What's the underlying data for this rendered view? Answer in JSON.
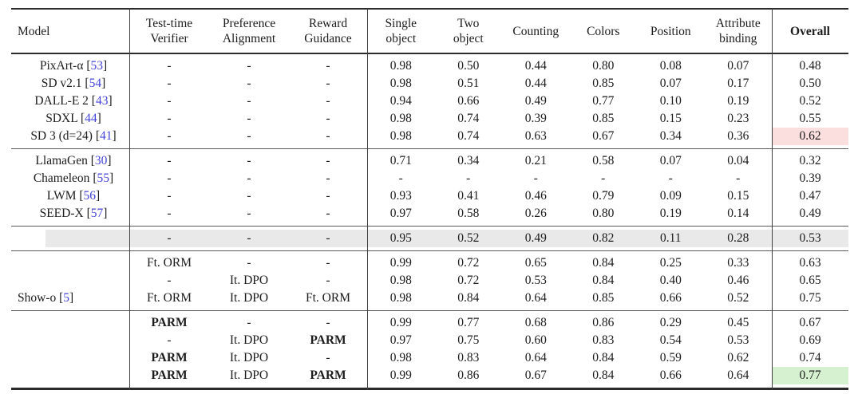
{
  "table": {
    "header": {
      "model": "Model",
      "verifier": "Test-time\nVerifier",
      "preference": "Preference\nAlignment",
      "reward": "Reward\nGuidance",
      "single_object": "Single\nobject",
      "two_object": "Two\nobject",
      "counting": "Counting",
      "colors": "Colors",
      "position": "Position",
      "attribute_binding": "Attribute\nbinding",
      "overall": "Overall"
    },
    "row_group_label": {
      "name": "Show-o",
      "cite": "[5]"
    },
    "groups": [
      {
        "rows": [
          {
            "model": "PixArt-α",
            "cite": "[53]",
            "methods": [
              "-",
              "-",
              "-"
            ],
            "scores": [
              "0.98",
              "0.50",
              "0.44",
              "0.80",
              "0.08",
              "0.07"
            ],
            "overall": "0.48"
          },
          {
            "model": "SD v2.1",
            "cite": "[54]",
            "methods": [
              "-",
              "-",
              "-"
            ],
            "scores": [
              "0.98",
              "0.51",
              "0.44",
              "0.85",
              "0.07",
              "0.17"
            ],
            "overall": "0.50"
          },
          {
            "model": "DALL-E 2",
            "cite": "[43]",
            "methods": [
              "-",
              "-",
              "-"
            ],
            "scores": [
              "0.94",
              "0.66",
              "0.49",
              "0.77",
              "0.10",
              "0.19"
            ],
            "overall": "0.52"
          },
          {
            "model": "SDXL",
            "cite": "[44]",
            "methods": [
              "-",
              "-",
              "-"
            ],
            "scores": [
              "0.98",
              "0.74",
              "0.39",
              "0.85",
              "0.15",
              "0.23"
            ],
            "overall": "0.55"
          },
          {
            "model": "SD 3 (d=24)",
            "cite": "[41]",
            "methods": [
              "-",
              "-",
              "-"
            ],
            "scores": [
              "0.98",
              "0.74",
              "0.63",
              "0.67",
              "0.34",
              "0.36"
            ],
            "overall": "0.62",
            "overall_highlight": "red"
          }
        ]
      },
      {
        "rows": [
          {
            "model": "LlamaGen",
            "cite": "[30]",
            "methods": [
              "-",
              "-",
              "-"
            ],
            "scores": [
              "0.71",
              "0.34",
              "0.21",
              "0.58",
              "0.07",
              "0.04"
            ],
            "overall": "0.32"
          },
          {
            "model": "Chameleon",
            "cite": "[55]",
            "methods": [
              "-",
              "-",
              "-"
            ],
            "scores": [
              "-",
              "-",
              "-",
              "-",
              "-",
              "-"
            ],
            "overall": "0.39"
          },
          {
            "model": "LWM",
            "cite": "[56]",
            "methods": [
              "-",
              "-",
              "-"
            ],
            "scores": [
              "0.93",
              "0.41",
              "0.46",
              "0.79",
              "0.09",
              "0.15"
            ],
            "overall": "0.47"
          },
          {
            "model": "SEED-X",
            "cite": "[57]",
            "methods": [
              "-",
              "-",
              "-"
            ],
            "scores": [
              "0.97",
              "0.58",
              "0.26",
              "0.80",
              "0.19",
              "0.14"
            ],
            "overall": "0.49"
          }
        ]
      },
      {
        "rows": [
          {
            "model": "",
            "cite": "",
            "methods": [
              "-",
              "-",
              "-"
            ],
            "scores": [
              "0.95",
              "0.52",
              "0.49",
              "0.82",
              "0.11",
              "0.28"
            ],
            "overall": "0.53",
            "row_highlight": "gray"
          }
        ]
      },
      {
        "rows": [
          {
            "model": "",
            "cite": "",
            "methods": [
              "Ft. ORM",
              "-",
              "-"
            ],
            "scores": [
              "0.99",
              "0.72",
              "0.65",
              "0.84",
              "0.25",
              "0.33"
            ],
            "overall": "0.63"
          },
          {
            "model": "",
            "cite": "",
            "methods": [
              "-",
              "It. DPO",
              "-"
            ],
            "scores": [
              "0.98",
              "0.72",
              "0.53",
              "0.84",
              "0.40",
              "0.46"
            ],
            "overall": "0.65"
          },
          {
            "model": "",
            "cite": "",
            "methods": [
              "Ft. ORM",
              "It. DPO",
              "Ft. ORM"
            ],
            "scores": [
              "0.98",
              "0.84",
              "0.64",
              "0.85",
              "0.66",
              "0.52"
            ],
            "overall": "0.75"
          }
        ]
      },
      {
        "rows": [
          {
            "model": "",
            "cite": "",
            "methods": [
              "PARM",
              "-",
              "-"
            ],
            "scores": [
              "0.99",
              "0.77",
              "0.68",
              "0.86",
              "0.29",
              "0.45"
            ],
            "overall": "0.67"
          },
          {
            "model": "",
            "cite": "",
            "methods": [
              "-",
              "It. DPO",
              "PARM"
            ],
            "scores": [
              "0.97",
              "0.75",
              "0.60",
              "0.83",
              "0.54",
              "0.53"
            ],
            "overall": "0.69"
          },
          {
            "model": "",
            "cite": "",
            "methods": [
              "PARM",
              "It. DPO",
              "-"
            ],
            "scores": [
              "0.98",
              "0.83",
              "0.64",
              "0.84",
              "0.59",
              "0.62"
            ],
            "overall": "0.74"
          },
          {
            "model": "",
            "cite": "",
            "methods": [
              "PARM",
              "It. DPO",
              "PARM"
            ],
            "scores": [
              "0.99",
              "0.86",
              "0.67",
              "0.84",
              "0.66",
              "0.64"
            ],
            "overall": "0.77",
            "overall_highlight": "green"
          }
        ]
      }
    ]
  },
  "colors": {
    "highlight_red": "#fbdfdf",
    "highlight_green": "#d5f1d0",
    "row_gray": "#e9e9e9",
    "citation_blue": "#4444d9",
    "rule_dark": "#2b2b2b"
  }
}
